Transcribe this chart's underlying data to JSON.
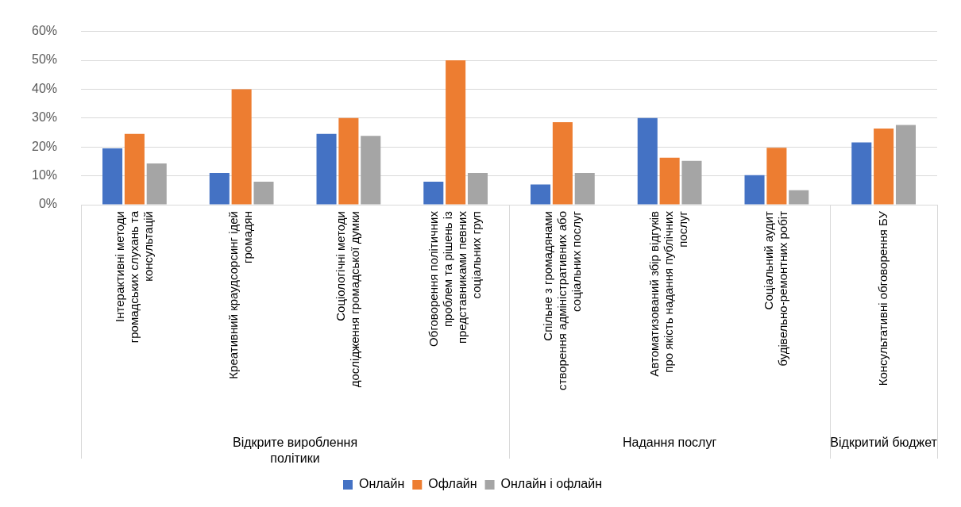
{
  "chart_data": {
    "type": "bar",
    "categories": [
      "Інтерактивні методи громадських слухань та консультацій",
      "Креативний краудсорсинг ідей громадян",
      "Соціологічні методи дослідження громадської думки",
      "Обговорення політичних проблем та рішень із представниками певних соціальних груп",
      "Спільне з громадянами створення адміністративних або соціальних послуг",
      "Автоматизований збір відгуків про якість надання публічних послуг",
      "Соціальний аудит будівельно-ремонтних робіт",
      "Консультативні обговорення БУ"
    ],
    "series": [
      {
        "name": "Онлайн",
        "color": "#4472c4",
        "values": [
          19.5,
          11,
          24.5,
          8,
          7,
          30,
          10.2,
          21.6
        ]
      },
      {
        "name": "Офлайн",
        "color": "#ed7d31",
        "values": [
          24.5,
          40,
          30,
          50,
          28.6,
          16.3,
          19.7,
          26.4
        ]
      },
      {
        "name": "Онлайн і офлайн",
        "color": "#a5a5a5",
        "values": [
          14.3,
          8,
          23.8,
          11,
          11,
          15.2,
          5,
          27.6
        ]
      }
    ],
    "annotations": [
      "Відкрите вироблення політики",
      "Надання послуг",
      "Відкритий бюджет"
    ],
    "ylim": [
      0,
      60
    ],
    "yticks": [
      {
        "value": 0,
        "label": "0%"
      },
      {
        "value": 10,
        "label": "10%"
      },
      {
        "value": 20,
        "label": "20%"
      },
      {
        "value": 30,
        "label": "30%"
      },
      {
        "value": 40,
        "label": "40%"
      },
      {
        "value": 50,
        "label": "50%"
      },
      {
        "value": 60,
        "label": "60%"
      }
    ],
    "grid": "y",
    "legend": "bottom"
  }
}
